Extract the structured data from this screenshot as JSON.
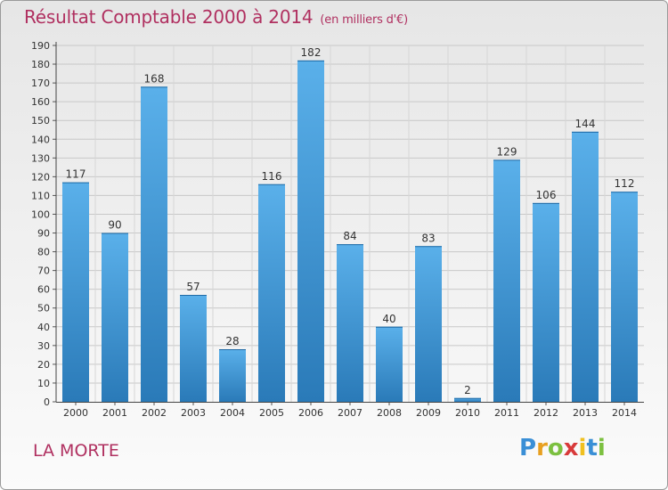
{
  "chart_data": {
    "type": "bar",
    "title": "Résultat Comptable 2000 à 2014",
    "subtitle": "(en milliers d'€)",
    "categories": [
      "2000",
      "2001",
      "2002",
      "2003",
      "2004",
      "2005",
      "2006",
      "2007",
      "2008",
      "2009",
      "2010",
      "2011",
      "2012",
      "2013",
      "2014"
    ],
    "values": [
      117,
      90,
      168,
      57,
      28,
      116,
      182,
      84,
      40,
      83,
      2,
      129,
      106,
      144,
      112
    ],
    "ylim": [
      0,
      190
    ],
    "ytick_step": 10,
    "bar_color_top": "#5ab0ea",
    "bar_color_bottom": "#2a7ab8",
    "grid": true
  },
  "commune": "LA MORTE",
  "logo": {
    "letters": [
      "P",
      "r",
      "o",
      "x",
      "i",
      "t",
      "i"
    ],
    "colors": [
      "#3a8fd6",
      "#e8a020",
      "#7cc040",
      "#d83a3a",
      "#f0c020",
      "#3a8fd6",
      "#7cc040"
    ]
  }
}
